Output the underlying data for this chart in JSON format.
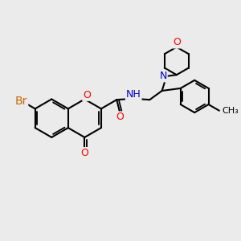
{
  "bg_color": "#ebebeb",
  "bond_color": "#000000",
  "bond_width": 1.5,
  "atom_colors": {
    "O": "#ff0000",
    "N": "#0000cd",
    "Br": "#cc6600",
    "C": "#000000",
    "H": "#555555"
  },
  "font_size": 9,
  "fig_size": [
    3.0,
    3.0
  ],
  "dpi": 100
}
